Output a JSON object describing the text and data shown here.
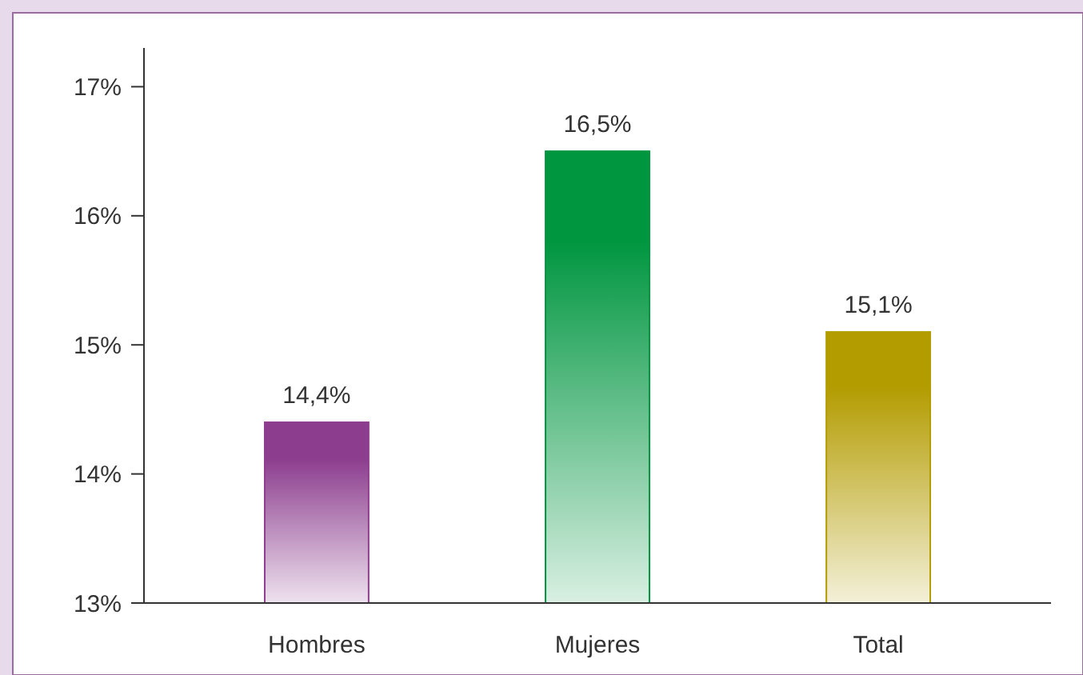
{
  "chart_data": {
    "type": "bar",
    "categories": [
      "Hombres",
      "Mujeres",
      "Total"
    ],
    "values": [
      14.4,
      16.5,
      15.1
    ],
    "colors": [
      "#8c3d8e",
      "#009640",
      "#b39c00"
    ],
    "value_labels": [
      "14,4%",
      "16,5%",
      "15,1%"
    ],
    "ylim": [
      13,
      17.3
    ],
    "yticks": [
      {
        "value": 13,
        "label": "13%"
      },
      {
        "value": 14,
        "label": "14%"
      },
      {
        "value": 15,
        "label": "15%"
      },
      {
        "value": 16,
        "label": "16%"
      },
      {
        "value": 17,
        "label": "17%"
      }
    ],
    "grid": false
  }
}
